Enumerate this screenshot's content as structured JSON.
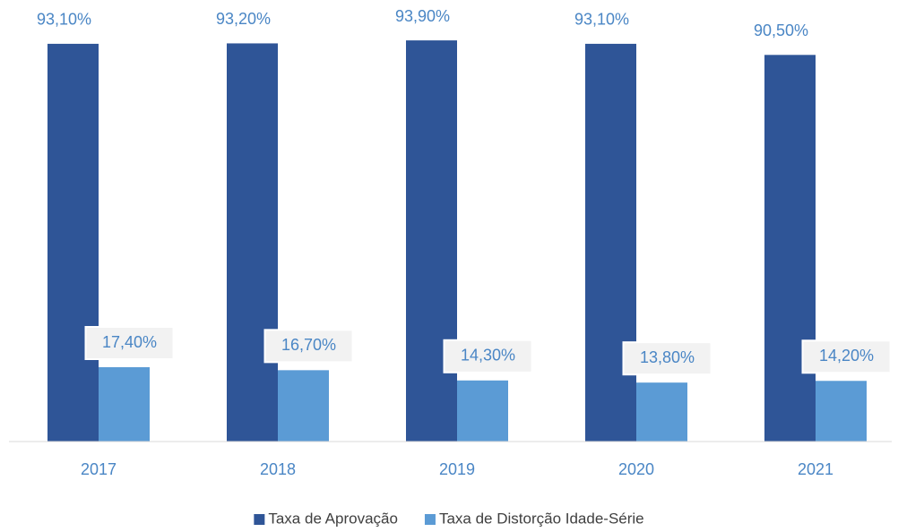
{
  "chart_data": {
    "type": "bar",
    "categories": [
      "2017",
      "2018",
      "2019",
      "2020",
      "2021"
    ],
    "series": [
      {
        "name": "Taxa de Aprovação",
        "color": "#2f5597",
        "values": [
          93.1,
          93.2,
          93.9,
          93.1,
          90.5
        ],
        "value_labels": [
          "93,10%",
          "93,20%",
          "93,90%",
          "93,10%",
          "90,50%"
        ]
      },
      {
        "name": "Taxa de Distorção Idade-Série",
        "color": "#5b9bd5",
        "values": [
          17.4,
          16.7,
          14.3,
          13.8,
          14.2
        ],
        "value_labels": [
          "17,40%",
          "16,70%",
          "14,30%",
          "13,80%",
          "14,20%"
        ]
      }
    ],
    "ylim": [
      0,
      100
    ],
    "legend": "bottom"
  }
}
